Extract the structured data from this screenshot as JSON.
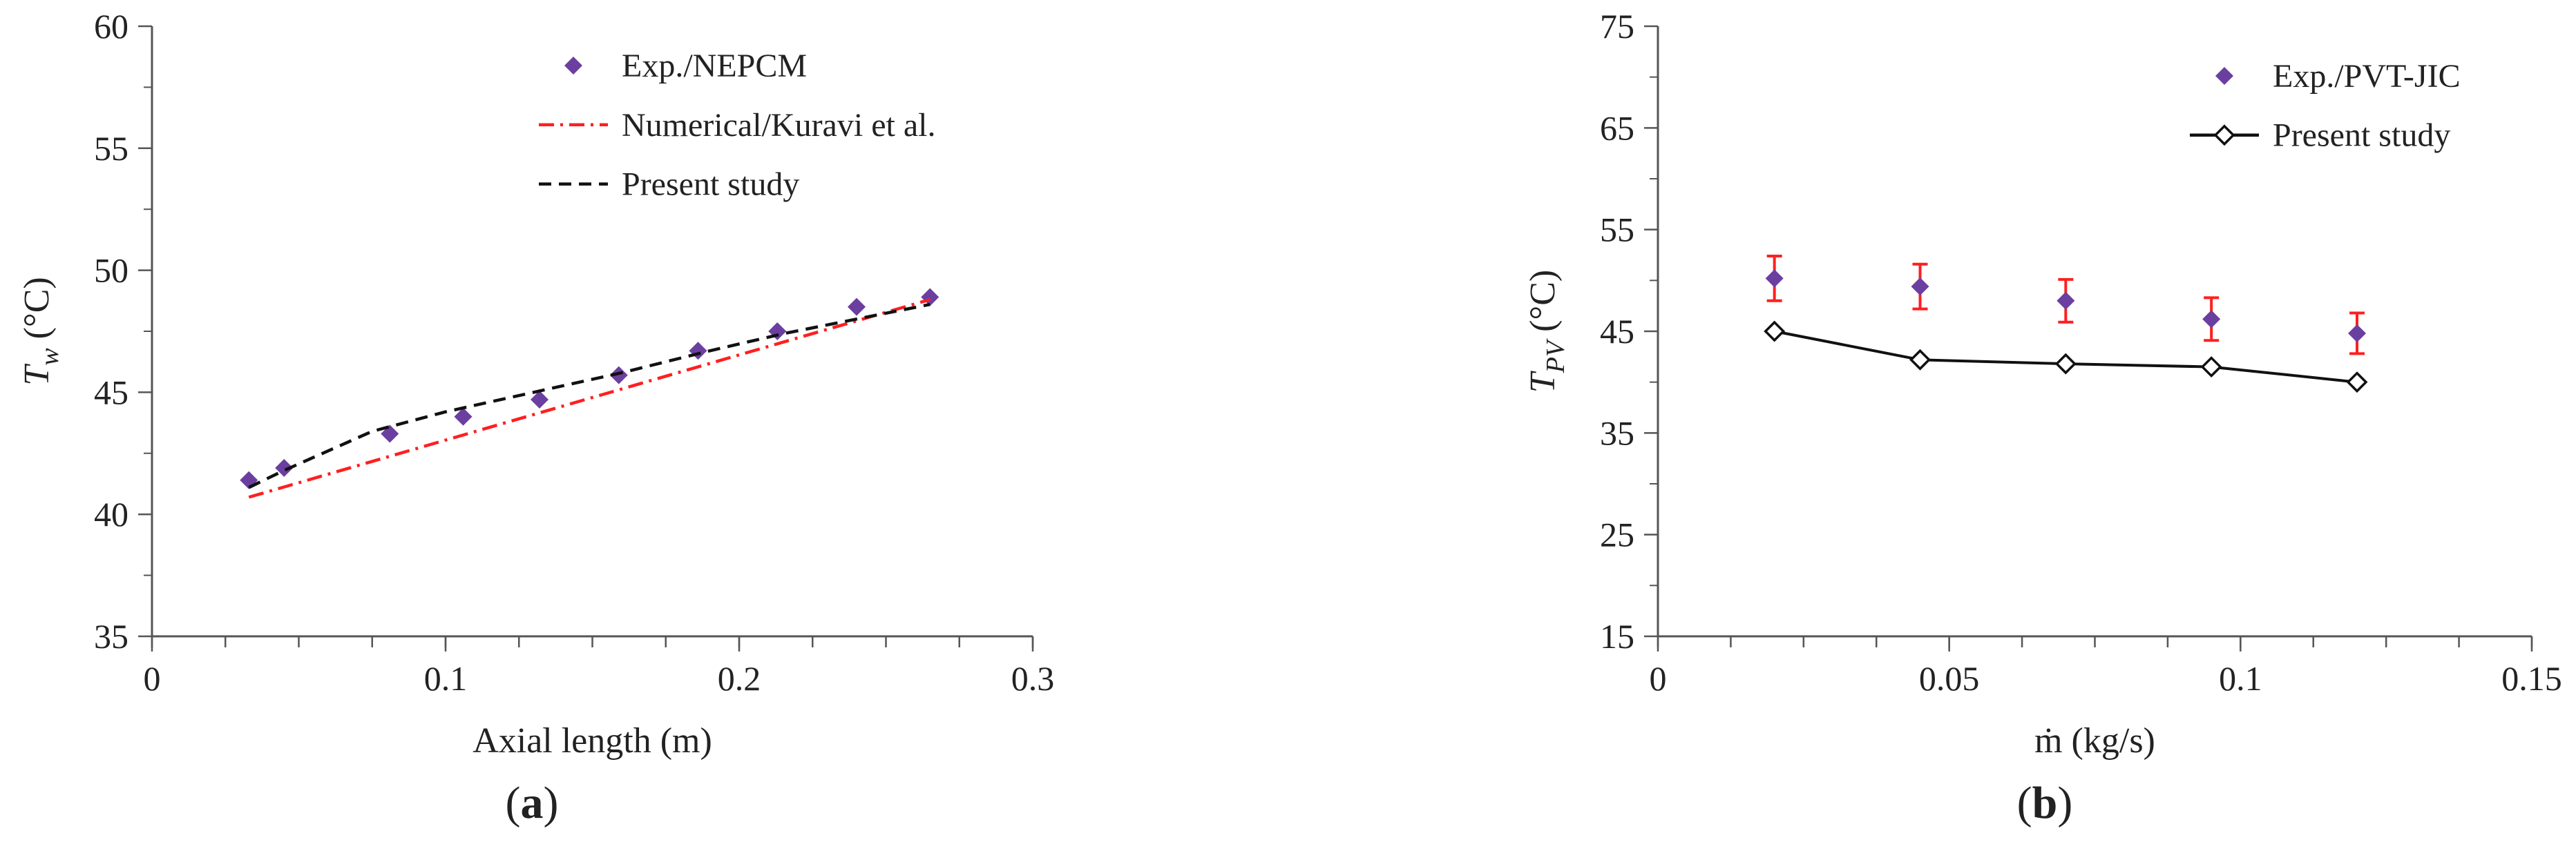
{
  "chart_data": [
    {
      "type": "scatter",
      "panel_label": "a",
      "xlabel": "Axial length (m)",
      "ylabel": "T",
      "ylabel_sub": "w",
      "ylabel_unit": " (°C)",
      "xlim": [
        0,
        0.3
      ],
      "ylim": [
        35,
        60
      ],
      "x_ticks": [
        "0",
        "0.1",
        "0.2",
        "0.3"
      ],
      "x_tick_values": [
        0,
        0.1,
        0.2,
        0.3
      ],
      "x_minor_step": 0.025,
      "y_ticks": [
        "35",
        "40",
        "45",
        "50",
        "55",
        "60"
      ],
      "y_tick_values": [
        35,
        40,
        45,
        50,
        55,
        60
      ],
      "grid": false,
      "legend_position": "top-right",
      "series": [
        {
          "name": "Exp./NEPCM",
          "kind": "marker",
          "color": "#6b3fa0",
          "x": [
            0.033,
            0.045,
            0.081,
            0.106,
            0.132,
            0.159,
            0.186,
            0.213,
            0.24,
            0.265
          ],
          "y": [
            41.4,
            41.9,
            43.3,
            44.0,
            44.7,
            45.7,
            46.7,
            47.5,
            48.5,
            48.9
          ]
        },
        {
          "name": "Numerical/Kuravi et al.",
          "kind": "dashdot",
          "color": "#ff1f1f",
          "x": [
            0.033,
            0.265
          ],
          "y": [
            40.7,
            48.8
          ]
        },
        {
          "name": "Present study",
          "kind": "dashed",
          "color": "#111111",
          "x": [
            0.033,
            0.045,
            0.075,
            0.1,
            0.13,
            0.16,
            0.19,
            0.215,
            0.24,
            0.265
          ],
          "y": [
            41.1,
            41.8,
            43.4,
            44.2,
            45.0,
            45.8,
            46.7,
            47.4,
            48.0,
            48.6
          ]
        }
      ]
    },
    {
      "type": "line",
      "panel_label": "b",
      "xlabel": "ṁ (kg/s)",
      "ylabel": "T",
      "ylabel_sub": "PV",
      "ylabel_unit": " (°C)",
      "xlim": [
        0,
        0.15
      ],
      "ylim": [
        15,
        75
      ],
      "x_ticks": [
        "0",
        "0.05",
        "0.1",
        "0.15"
      ],
      "x_tick_values": [
        0,
        0.05,
        0.1,
        0.15
      ],
      "x_minor_step": 0.0125,
      "y_ticks": [
        "15",
        "25",
        "35",
        "45",
        "55",
        "65",
        "75"
      ],
      "y_tick_values": [
        15,
        25,
        35,
        45,
        55,
        65,
        75
      ],
      "grid": false,
      "legend_position": "top-right",
      "series": [
        {
          "name": "Exp./PVT-JIC",
          "kind": "marker-errorbar",
          "color": "#6b3fa0",
          "error_color": "#ff1f1f",
          "x": [
            0.02,
            0.045,
            0.07,
            0.095,
            0.12
          ],
          "y": [
            50.2,
            49.4,
            48.0,
            46.2,
            44.8
          ],
          "error": [
            2.2,
            2.2,
            2.1,
            2.1,
            2.0
          ]
        },
        {
          "name": "Present study",
          "kind": "line-open-marker",
          "color": "#111111",
          "x": [
            0.02,
            0.045,
            0.07,
            0.095,
            0.12
          ],
          "y": [
            45.0,
            42.2,
            41.8,
            41.5,
            40.0
          ]
        }
      ]
    }
  ]
}
